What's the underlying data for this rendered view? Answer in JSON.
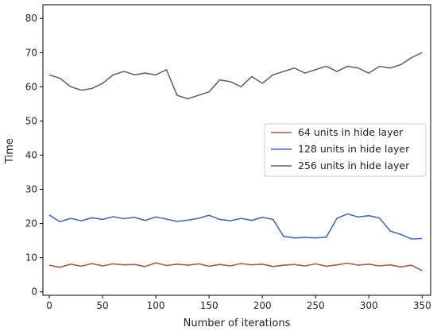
{
  "chart_data": {
    "type": "line",
    "xlabel": "Number of iterations",
    "ylabel": "Time",
    "xlim": [
      -6,
      358
    ],
    "ylim": [
      -1,
      84
    ],
    "xticks": [
      0,
      50,
      100,
      150,
      200,
      250,
      300,
      350
    ],
    "yticks": [
      0,
      10,
      20,
      30,
      40,
      50,
      60,
      70,
      80
    ],
    "grid": false,
    "legend_position": "center-right",
    "series": [
      {
        "name": "64 units in hide layer",
        "color": "#a85a48",
        "x": [
          0,
          10,
          20,
          30,
          40,
          50,
          60,
          70,
          80,
          90,
          100,
          110,
          120,
          130,
          140,
          150,
          160,
          170,
          180,
          190,
          200,
          210,
          220,
          230,
          240,
          250,
          260,
          270,
          280,
          290,
          300,
          310,
          320,
          330,
          340,
          350
        ],
        "values": [
          7.8,
          7.2,
          8.1,
          7.5,
          8.3,
          7.6,
          8.2,
          7.9,
          8.0,
          7.4,
          8.5,
          7.7,
          8.1,
          7.8,
          8.2,
          7.5,
          8.0,
          7.6,
          8.3,
          7.9,
          8.1,
          7.4,
          7.8,
          8.0,
          7.6,
          8.2,
          7.5,
          7.9,
          8.4,
          7.8,
          8.1,
          7.6,
          7.9,
          7.3,
          7.8,
          6.2
        ]
      },
      {
        "name": "128 units in hide layer",
        "color": "#4a6ab0",
        "x": [
          0,
          10,
          20,
          30,
          40,
          50,
          60,
          70,
          80,
          90,
          100,
          110,
          120,
          130,
          140,
          150,
          160,
          170,
          180,
          190,
          200,
          210,
          220,
          230,
          240,
          250,
          260,
          270,
          280,
          290,
          300,
          310,
          320,
          330,
          340,
          350
        ],
        "values": [
          22.5,
          20.5,
          21.5,
          20.8,
          21.7,
          21.2,
          22.0,
          21.4,
          21.8,
          20.9,
          21.9,
          21.3,
          20.6,
          21.0,
          21.5,
          22.4,
          21.2,
          20.8,
          21.5,
          20.9,
          21.8,
          21.2,
          16.2,
          15.8,
          15.9,
          15.8,
          16.0,
          21.5,
          22.8,
          21.9,
          22.3,
          21.6,
          17.8,
          16.8,
          15.5,
          15.6
        ]
      },
      {
        "name": "256 units in hide layer",
        "color": "#666666",
        "x": [
          0,
          10,
          20,
          30,
          40,
          50,
          60,
          70,
          80,
          90,
          100,
          110,
          120,
          130,
          140,
          150,
          160,
          170,
          180,
          190,
          200,
          210,
          220,
          230,
          240,
          250,
          260,
          270,
          280,
          290,
          300,
          310,
          320,
          330,
          340,
          350
        ],
        "values": [
          63.5,
          62.5,
          60.0,
          59.0,
          59.5,
          61.0,
          63.5,
          64.5,
          63.5,
          64.0,
          63.5,
          65.0,
          57.5,
          56.5,
          57.5,
          58.5,
          62.0,
          61.5,
          60.0,
          63.0,
          61.0,
          63.5,
          64.5,
          65.5,
          64.0,
          65.0,
          66.0,
          64.5,
          66.0,
          65.5,
          64.0,
          66.0,
          65.5,
          66.5,
          68.5,
          70.0
        ]
      }
    ]
  }
}
